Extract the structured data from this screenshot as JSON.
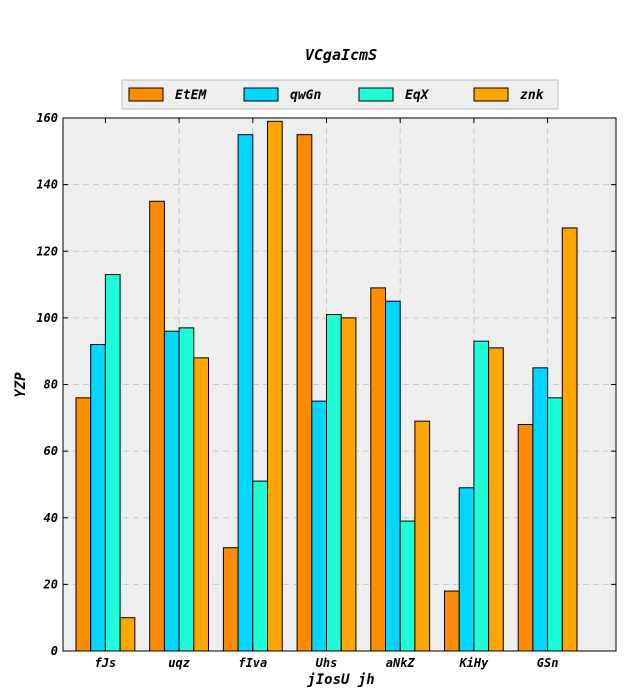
{
  "chart_data": {
    "type": "bar",
    "title": "VCgaIcmS",
    "xlabel": "jIosU jh",
    "ylabel": "YZP",
    "categories": [
      "fJs",
      "uqz",
      "fIva",
      "Uhs",
      "aNkZ",
      "KiHy",
      "GSn"
    ],
    "series": [
      {
        "name": "EtEM",
        "color": "#ff8c00",
        "values": [
          76,
          135,
          31,
          155,
          109,
          18,
          68
        ]
      },
      {
        "name": "qwGn",
        "color": "#00d7ff",
        "values": [
          92,
          96,
          155,
          75,
          105,
          49,
          85
        ]
      },
      {
        "name": "EqX",
        "color": "#1effd7",
        "values": [
          113,
          97,
          51,
          101,
          39,
          93,
          76
        ]
      },
      {
        "name": "znk",
        "color": "#ffa500",
        "values": [
          10,
          88,
          159,
          100,
          69,
          91,
          127
        ]
      }
    ],
    "ylim": [
      0,
      160
    ],
    "yticks": [
      "0",
      "20",
      "40",
      "60",
      "80",
      "100",
      "120",
      "140",
      "160"
    ],
    "grid": true,
    "legend_position": "top-center"
  }
}
